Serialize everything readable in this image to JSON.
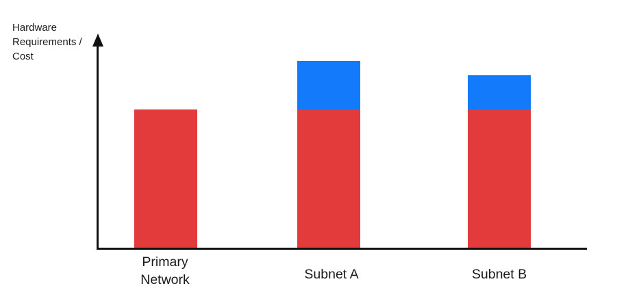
{
  "chart_data": {
    "type": "bar",
    "subtype": "stacked-vertical",
    "title": "",
    "xlabel": "",
    "ylabel": "Hardware Requirements / Cost",
    "categories": [
      "Primary Network",
      "Subnet A",
      "Subnet B"
    ],
    "series": [
      {
        "name": "base-requirement",
        "color": "#E33B3B",
        "values": [
          100,
          100,
          100
        ]
      },
      {
        "name": "additional-requirement",
        "color": "#127AFB",
        "values": [
          0,
          35,
          25
        ]
      }
    ],
    "value_scale": "relative; no numeric ticks shown, red base segment normalized to 100",
    "axis": {
      "y_arrow": true,
      "numeric_ticks": false,
      "gridlines": false,
      "legend": "none"
    }
  },
  "axis_labels": {
    "y_line1": "Hardware",
    "y_line2": "Requirements /",
    "y_line3": "Cost"
  },
  "colors": {
    "bar_red": "#E33B3B",
    "bar_blue": "#127AFB",
    "axis": "#111111",
    "text": "#1A1A1A",
    "background": "#FFFFFF"
  }
}
